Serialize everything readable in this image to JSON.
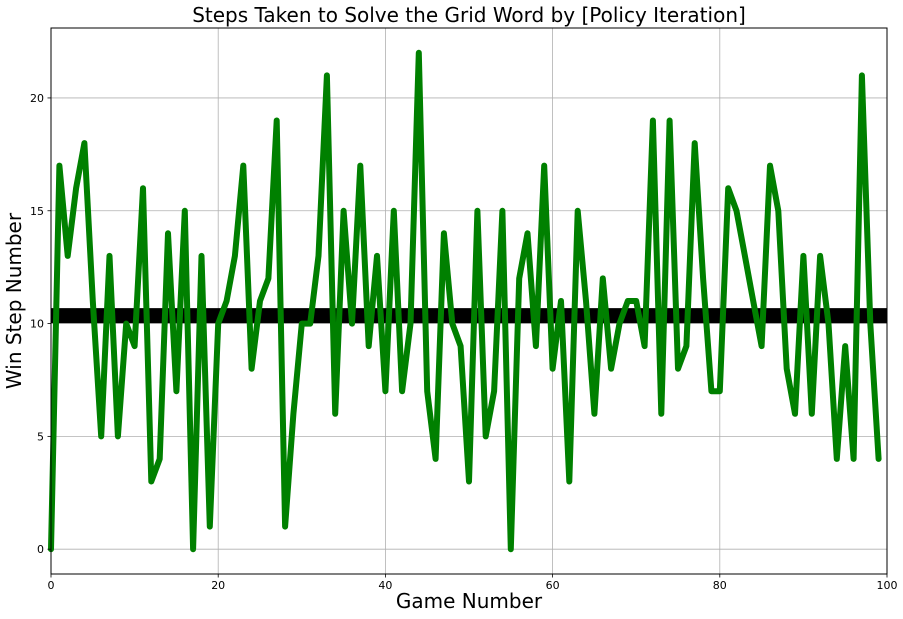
{
  "chart_data": {
    "type": "line",
    "title": "Steps Taken to Solve the Grid Word by [Policy Iteration]",
    "xlabel": "Game Number",
    "ylabel": "Win Step Number",
    "xlim": [
      0,
      100
    ],
    "ylim": [
      -1.1,
      23.1
    ],
    "xticks": [
      0,
      20,
      40,
      60,
      80,
      100
    ],
    "yticks": [
      0,
      5,
      10,
      15,
      20
    ],
    "grid": true,
    "series": [
      {
        "color": "#008000",
        "x": [
          0,
          1,
          2,
          3,
          4,
          5,
          6,
          7,
          8,
          9,
          10,
          11,
          12,
          13,
          14,
          15,
          16,
          17,
          18,
          19,
          20,
          21,
          22,
          23,
          24,
          25,
          26,
          27,
          28,
          29,
          30,
          31,
          32,
          33,
          34,
          35,
          36,
          37,
          38,
          39,
          40,
          41,
          42,
          43,
          44,
          45,
          46,
          47,
          48,
          49,
          50,
          51,
          52,
          53,
          54,
          55,
          56,
          57,
          58,
          59,
          60,
          61,
          62,
          63,
          64,
          65,
          66,
          67,
          68,
          69,
          70,
          71,
          72,
          73,
          74,
          75,
          76,
          77,
          78,
          79,
          80,
          81,
          82,
          83,
          84,
          85,
          86,
          87,
          88,
          89,
          90,
          91,
          92,
          93,
          94,
          95,
          96,
          97,
          98,
          99
        ],
        "values": [
          0,
          17,
          13,
          16,
          18,
          11,
          5,
          13,
          5,
          10,
          9,
          16,
          3,
          4,
          14,
          7,
          15,
          0,
          13,
          1,
          10,
          11,
          13,
          17,
          8,
          11,
          12,
          19,
          1,
          6,
          10,
          10,
          13,
          21,
          6,
          15,
          10,
          17,
          9,
          13,
          7,
          15,
          7,
          10,
          22,
          7,
          4,
          14,
          10,
          9,
          3,
          15,
          5,
          7,
          15,
          0,
          12,
          14,
          9,
          17,
          8,
          11,
          3,
          15,
          11,
          6,
          12,
          8,
          10,
          11,
          11,
          9,
          19,
          6,
          19,
          8,
          9,
          18,
          12,
          7,
          7,
          16,
          15,
          13,
          11,
          9,
          17,
          15,
          8,
          6,
          13,
          6,
          13,
          10,
          4,
          9,
          4,
          21,
          10,
          4
        ]
      }
    ],
    "reference_line": {
      "y": 10.35,
      "color": "#000000"
    }
  }
}
